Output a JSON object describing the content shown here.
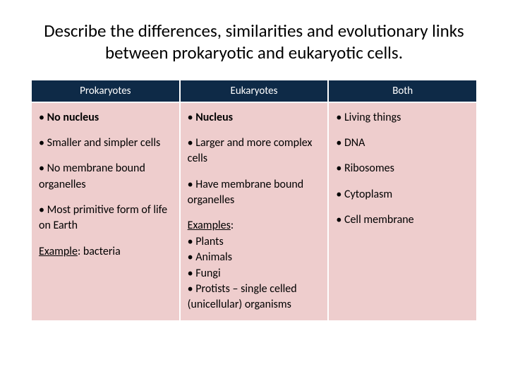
{
  "title": "Describe the differences, similarities and evolutionary links between prokaryotic and eukaryotic cells.",
  "columns": [
    {
      "header": "Prokaryotes"
    },
    {
      "header": "Eukaryotes"
    },
    {
      "header": "Both"
    }
  ],
  "col0": {
    "i0": "No nucleus",
    "i1": "Smaller and simpler cells",
    "i2": "No membrane bound organelles",
    "i3": "Most primitive form of life on Earth",
    "exLabel": "Example",
    "exText": ": bacteria"
  },
  "col1": {
    "i0": "Nucleus",
    "i1": "Larger and more complex cells",
    "i2": "Have membrane bound organelles",
    "exLabel": "Examples",
    "exColon": ":",
    "e0": "Plants",
    "e1": "Animals",
    "e2": "Fungi",
    "e3": "Protists – single celled (unicellular) organisms"
  },
  "col2": {
    "i0": "Living things",
    "i1": "DNA",
    "i2": "Ribosomes",
    "i3": "Cytoplasm",
    "i4": "Cell membrane"
  },
  "colors": {
    "header_bg": "#0e2a47",
    "header_fg": "#ffffff",
    "body_bg": "#eecdcd",
    "body_fg": "#000000",
    "page_bg": "#ffffff",
    "cell_border": "#ffffff"
  },
  "fonts": {
    "title_pt": 25,
    "header_pt": 15,
    "body_pt": 16
  }
}
